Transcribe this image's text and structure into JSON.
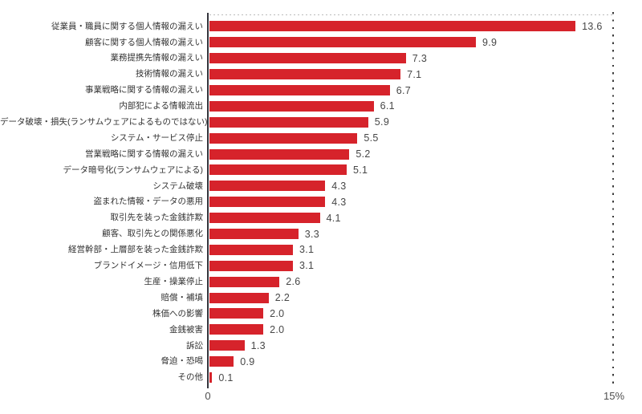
{
  "chart_data": {
    "type": "bar",
    "orientation": "horizontal",
    "title": "",
    "xlabel": "",
    "ylabel": "",
    "xlim": [
      0,
      15
    ],
    "grid": "dotted boundary at top and at 15% on the right",
    "legend": "none",
    "bar_color": "#d6232b",
    "axis_line_color": "#35353d",
    "label_color": "#333333",
    "value_label_color": "#474747",
    "categories": [
      "従業員・職員に関する個人情報の漏えい",
      "顧客に関する個人情報の漏えい",
      "業務提携先情報の漏えい",
      "技術情報の漏えい",
      "事業戦略に関する情報の漏えい",
      "内部犯による情報流出",
      "データ破壊・損失(ランサムウェアによるものではない)",
      "システム・サービス停止",
      "営業戦略に関する情報の漏えい",
      "データ暗号化(ランサムウェアによる)",
      "システム破壊",
      "盗まれた情報・データの悪用",
      "取引先を装った金銭詐欺",
      "顧客、取引先との関係悪化",
      "経営幹部・上層部を装った金銭詐欺",
      "ブランドイメージ・信用低下",
      "生産・操業停止",
      "賠償・補填",
      "株価への影響",
      "金銭被害",
      "訴訟",
      "脅迫・恐喝",
      "その他"
    ],
    "values": [
      13.6,
      9.9,
      7.3,
      7.1,
      6.7,
      6.1,
      5.9,
      5.5,
      5.2,
      5.1,
      4.3,
      4.3,
      4.1,
      3.3,
      3.1,
      3.1,
      2.6,
      2.2,
      2.0,
      2.0,
      1.3,
      0.9,
      0.1
    ],
    "value_labels": [
      "13.6",
      "9.9",
      "7.3",
      "7.1",
      "6.7",
      "6.1",
      "5.9",
      "5.5",
      "5.2",
      "5.1",
      "4.3",
      "4.3",
      "4.1",
      "3.3",
      "3.1",
      "3.1",
      "2.6",
      "2.2",
      "2.0",
      "2.0",
      "1.3",
      "0.9",
      "0.1"
    ],
    "x_axis": {
      "zero_label": "0",
      "max_label": "15%"
    }
  }
}
